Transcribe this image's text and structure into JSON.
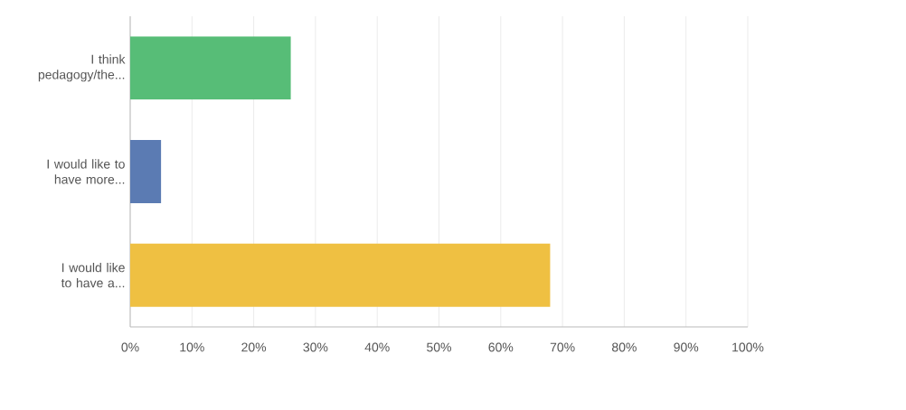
{
  "chart_data": {
    "type": "bar",
    "orientation": "horizontal",
    "categories": [
      "I think pedagogy/the...",
      "I would like to have more...",
      "I would like to have a..."
    ],
    "values": [
      26,
      5,
      68
    ],
    "colors": [
      "#57bd77",
      "#5b7bb3",
      "#efc042"
    ],
    "xlim": [
      0,
      100
    ],
    "xticks": [
      {
        "value": 0,
        "label": "0%"
      },
      {
        "value": 10,
        "label": "10%"
      },
      {
        "value": 20,
        "label": "20%"
      },
      {
        "value": 30,
        "label": "30%"
      },
      {
        "value": 40,
        "label": "40%"
      },
      {
        "value": 50,
        "label": "50%"
      },
      {
        "value": 60,
        "label": "60%"
      },
      {
        "value": 70,
        "label": "70%"
      },
      {
        "value": 80,
        "label": "80%"
      },
      {
        "value": 90,
        "label": "90%"
      },
      {
        "value": 100,
        "label": "100%"
      }
    ],
    "grid": "x"
  }
}
